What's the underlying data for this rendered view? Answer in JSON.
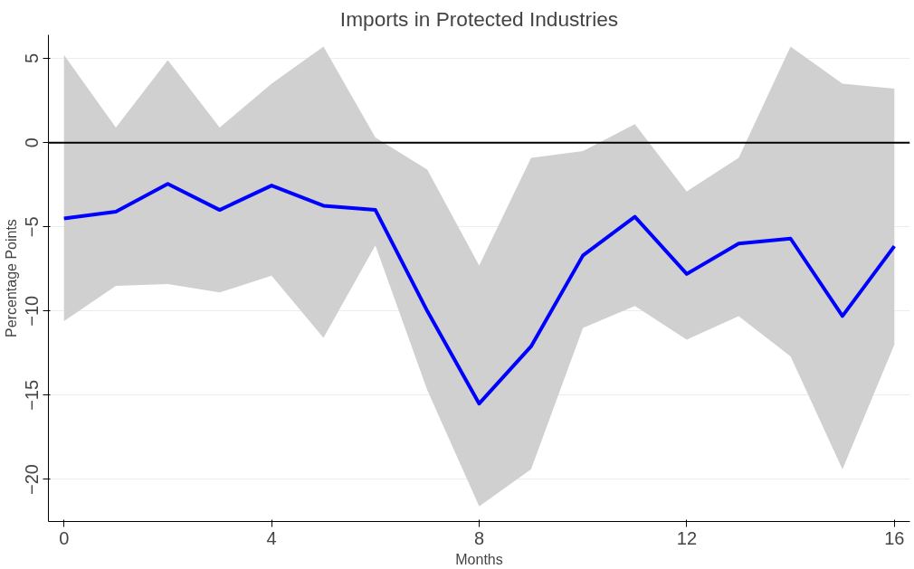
{
  "chart_data": {
    "type": "line",
    "title": "Imports in Protected Industries",
    "xlabel": "Months",
    "ylabel": "Percentage Points",
    "x": [
      0,
      1,
      2,
      3,
      4,
      5,
      6,
      7,
      8,
      9,
      10,
      11,
      12,
      13,
      14,
      15,
      16
    ],
    "series": [
      {
        "color": "#0000ff",
        "values": [
          -4.5,
          -4.1,
          -2.45,
          -4.0,
          -2.55,
          -3.75,
          -4.0,
          -10.0,
          -15.5,
          -12.1,
          -6.7,
          -4.4,
          -7.8,
          -6.0,
          -5.7,
          -10.3,
          -6.15
        ],
        "lower": [
          -10.6,
          -8.5,
          -8.4,
          -8.9,
          -7.9,
          -11.6,
          -6.1,
          -14.7,
          -21.6,
          -19.4,
          -11.0,
          -9.7,
          -11.7,
          -10.3,
          -12.7,
          -19.4,
          -12.0
        ],
        "upper": [
          5.2,
          0.9,
          4.9,
          0.9,
          3.5,
          5.7,
          0.3,
          -1.6,
          -7.3,
          -0.9,
          -0.5,
          1.1,
          -2.9,
          -0.9,
          5.7,
          3.5,
          3.2
        ]
      }
    ],
    "xlim": [
      -0.3,
      16.3
    ],
    "ylim": [
      -22.5,
      6.4
    ],
    "xticks": [
      0,
      4,
      8,
      12,
      16
    ],
    "yticks": [
      -20,
      -15,
      -10,
      -5,
      0,
      5
    ],
    "grid": "y",
    "ref_lines": [
      {
        "axis": "y",
        "value": 0,
        "color": "#000000"
      }
    ],
    "line_style": "solid"
  }
}
